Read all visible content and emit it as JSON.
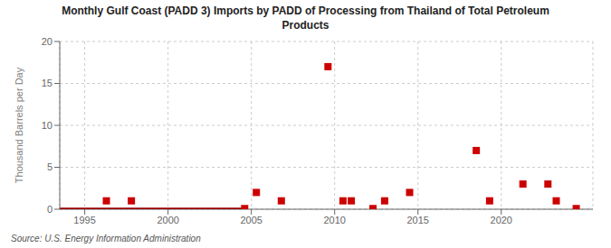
{
  "chart_data": {
    "type": "scatter",
    "title": "Monthly Gulf Coast (PADD 3) Imports by PADD of Processing from Thailand of Total Petroleum\nProducts",
    "y_label": "Thousand Barrels per Day",
    "annotations": [
      "Source: U.S. Energy Information Administration"
    ],
    "xlim": [
      1993.5,
      2025.5
    ],
    "xticks": [
      1995,
      2000,
      2005,
      2010,
      2015,
      2020
    ],
    "ylim": [
      0,
      20
    ],
    "yticks": [
      0,
      5,
      10,
      15,
      20
    ],
    "grid": true,
    "series": [
      {
        "type": "scatter",
        "marker": "square",
        "color": "#cc0000",
        "x": [
          1996.3,
          1997.8,
          2004.6,
          2005.3,
          2006.8,
          2009.6,
          2010.5,
          2011.0,
          2012.3,
          2013.0,
          2014.5,
          2018.5,
          2019.3,
          2021.3,
          2022.8,
          2023.3,
          2024.5
        ],
        "values": [
          1.0,
          1.0,
          0.08,
          2.0,
          1.0,
          17.0,
          1.0,
          1.0,
          0.08,
          1.0,
          2.0,
          7.0,
          1.0,
          3.0,
          3.0,
          1.0,
          0.08
        ]
      },
      {
        "type": "line",
        "color": "#990000",
        "x": [
          1993.5,
          2004.4
        ],
        "values": [
          0,
          0
        ]
      }
    ]
  }
}
